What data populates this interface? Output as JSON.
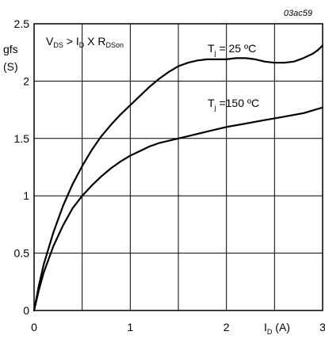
{
  "figure_id": "03ac59",
  "chart_data": {
    "type": "line",
    "ylabel_line1": "gfs",
    "ylabel_line2": "(S)",
    "xlabel": {
      "main": "I",
      "sub": "D",
      "unit": " (A)"
    },
    "condition": {
      "v": "V",
      "v_sub": "DS",
      "mid": " > I",
      "i_sub": "D",
      "x": " X R",
      "r_sub": "DSon"
    },
    "xlim": [
      0,
      3
    ],
    "ylim": [
      0,
      2.5
    ],
    "x_ticks": [
      0,
      1,
      2,
      3
    ],
    "y_ticks": [
      0,
      0.5,
      1,
      1.5,
      2,
      2.5
    ],
    "x_tick_labels": [
      "0",
      "1",
      "2",
      "3"
    ],
    "y_tick_labels": [
      "0",
      "0.5",
      "1",
      "1.5",
      "2",
      "2.5"
    ],
    "vertical_gridlines": [
      0.5,
      1,
      1.5,
      2,
      2.5
    ],
    "horizontal_gridlines": [
      0.5,
      1,
      1.5,
      2
    ],
    "series": [
      {
        "label": {
          "t": "T",
          "sub": "j",
          "rest": " = 25 ºC"
        },
        "x": [
          0,
          0.05,
          0.1,
          0.2,
          0.3,
          0.4,
          0.5,
          0.6,
          0.7,
          0.8,
          0.9,
          1.0,
          1.1,
          1.2,
          1.3,
          1.4,
          1.5,
          1.6,
          1.7,
          1.8,
          1.9,
          2.0,
          2.1,
          2.2,
          2.3,
          2.4,
          2.5,
          2.6,
          2.7,
          2.8,
          2.9,
          2.95,
          3.0
        ],
        "y": [
          0,
          0.22,
          0.4,
          0.68,
          0.91,
          1.1,
          1.26,
          1.4,
          1.52,
          1.62,
          1.71,
          1.79,
          1.87,
          1.95,
          2.02,
          2.08,
          2.13,
          2.16,
          2.18,
          2.19,
          2.19,
          2.19,
          2.2,
          2.2,
          2.19,
          2.17,
          2.16,
          2.16,
          2.17,
          2.2,
          2.24,
          2.27,
          2.31
        ]
      },
      {
        "label": {
          "t": "T",
          "sub": "j",
          "rest": " =150 ºC"
        },
        "x": [
          0,
          0.05,
          0.1,
          0.2,
          0.3,
          0.4,
          0.5,
          0.6,
          0.7,
          0.8,
          0.9,
          1.0,
          1.1,
          1.2,
          1.3,
          1.4,
          1.5,
          1.6,
          1.7,
          1.8,
          1.9,
          2.0,
          2.2,
          2.4,
          2.6,
          2.8,
          3.0
        ],
        "y": [
          0,
          0.18,
          0.33,
          0.56,
          0.74,
          0.89,
          1.0,
          1.09,
          1.17,
          1.24,
          1.3,
          1.35,
          1.39,
          1.43,
          1.46,
          1.48,
          1.5,
          1.52,
          1.54,
          1.56,
          1.58,
          1.6,
          1.63,
          1.66,
          1.69,
          1.72,
          1.77
        ]
      }
    ]
  }
}
